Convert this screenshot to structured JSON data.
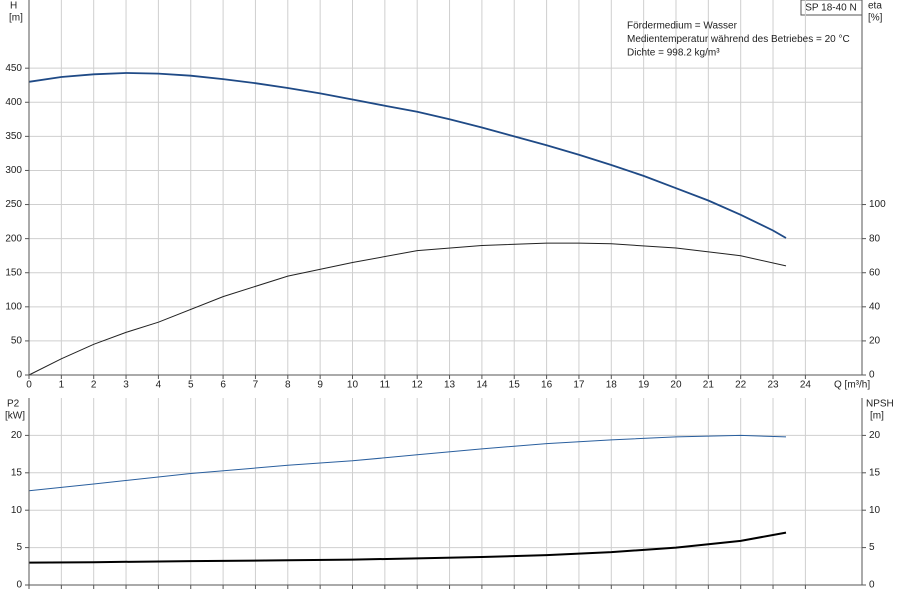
{
  "chart_data": [
    {
      "type": "line",
      "title": "SP 18-40 N",
      "annotations": [
        "Fördermedium = Wasser",
        "Medientemperatur während des Betriebes = 20 °C",
        "Dichte = 998.2 kg/m³"
      ],
      "x_label": "Q [m³/h]",
      "y_label": "H",
      "y_unit": "[m]",
      "y2_label": "eta",
      "y2_unit": "[%]",
      "xlim": [
        0,
        25.75
      ],
      "xticks": [
        0,
        1,
        2,
        3,
        4,
        5,
        6,
        7,
        8,
        9,
        10,
        11,
        12,
        13,
        14,
        15,
        16,
        17,
        18,
        19,
        20,
        21,
        22,
        23,
        24
      ],
      "ylim": [
        0,
        550
      ],
      "yticks": [
        0,
        50,
        100,
        150,
        200,
        250,
        300,
        350,
        400,
        450
      ],
      "y2lim": [
        0,
        220
      ],
      "y2ticks": [
        0,
        20,
        40,
        60,
        80,
        100
      ],
      "grid": true,
      "series": [
        {
          "color": "#1f4a86",
          "width": 1.8,
          "x": [
            0,
            1,
            2,
            3,
            4,
            5,
            6,
            7,
            8,
            9,
            10,
            11,
            12,
            13,
            14,
            15,
            16,
            17,
            18,
            19,
            20,
            21,
            22,
            23,
            23.4
          ],
          "values": [
            430,
            437,
            441,
            443,
            442,
            439,
            434,
            428,
            421,
            413,
            404,
            395,
            386,
            375,
            363,
            350,
            337,
            323,
            308,
            292,
            274,
            256,
            235,
            212,
            201
          ]
        },
        {
          "color": "#222222",
          "width": 1,
          "axis": "y2",
          "x": [
            0,
            1,
            2,
            3,
            4,
            6,
            8,
            10,
            12,
            14,
            16,
            17,
            18,
            20,
            22,
            23.4
          ],
          "values": [
            0,
            9.5,
            18,
            25,
            31,
            46,
            58,
            66,
            73,
            76,
            77.4,
            77.4,
            77,
            74.5,
            70,
            64
          ]
        }
      ]
    },
    {
      "type": "line",
      "y_label": "P2",
      "y_unit": "[kW]",
      "y2_label": "NPSH",
      "y2_unit": "[m]",
      "xlim": [
        0,
        25.75
      ],
      "ylim": [
        0,
        25
      ],
      "yticks": [
        0,
        5,
        10,
        15,
        20
      ],
      "y2lim": [
        0,
        25
      ],
      "y2ticks": [
        0,
        5,
        10,
        15,
        20
      ],
      "grid": true,
      "series": [
        {
          "color": "#2a5f9e",
          "width": 1,
          "x": [
            0,
            2,
            5,
            8,
            10,
            12,
            14,
            16,
            18,
            20,
            22,
            23.4
          ],
          "values": [
            12.6,
            13.5,
            14.9,
            16,
            16.6,
            17.4,
            18.2,
            18.9,
            19.4,
            19.8,
            20,
            19.8
          ]
        },
        {
          "color": "#000000",
          "width": 2,
          "axis": "y2",
          "x": [
            0,
            2,
            5,
            8,
            10,
            12,
            14,
            16,
            18,
            20,
            22,
            23.4
          ],
          "values": [
            3.0,
            3.05,
            3.2,
            3.3,
            3.4,
            3.55,
            3.75,
            4.0,
            4.4,
            5.0,
            5.9,
            7.0
          ]
        }
      ]
    }
  ]
}
